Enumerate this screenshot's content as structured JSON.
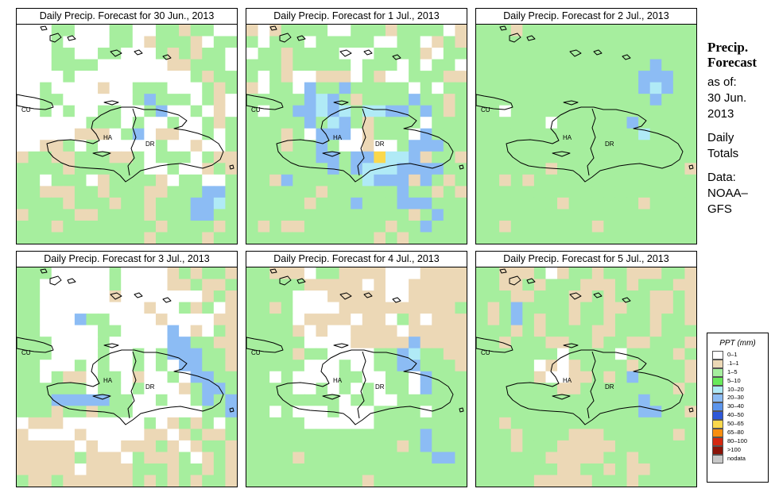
{
  "panels": [
    {
      "title": "Daily Precip. Forecast for  30 Jun., 2013",
      "grid": [
        "WWWGGWWWGGWWGGTGGWW",
        "WWWGWWWWGGWTGGGTWGG",
        "WWWGGWWGGWWWGTGTGGW",
        "WWWGGGGWWWWWWTTGGGW",
        "WWWWGWWWWWWWWWWGTGG",
        "WWGWWWWTWWGGGWWWGTG",
        "WWGGWWWWWWGLGGGWGTW",
        "WWGWGWWGGWWGLWWGWTW",
        "WWWWWWGGGWGWWGWWGTG",
        "WWWWWTTTWGLWTTWWGWG",
        "WWTTGWGWWWWWGWWTWWG",
        "TGGTTGGGTTGWGGGWGTT",
        "GGGGTGGGGGGWWGWWTGT",
        "GGWGGGWTGGGGTWGGWWG",
        "GGTTTGGTGGGTTGGGLLG",
        "GGGGTGGGTGGTGGGLLSG",
        "TGGGGTTGGGGTGGGLLGG",
        "GGGTGGGGGGGGTGGGGTG",
        "GGGGGGGGGGGTGGGGTGG"
      ]
    },
    {
      "title": "Daily Precip. Forecast for  1 Jul., 2013",
      "grid": [
        "TWTGGGGWWGGGTGGGGWT",
        "GWGGGWGGGGGWWGGWTGT",
        "WGGTGGGGWWWGGGGTWGG",
        "GGGTGGGGGWGGGWGWGGW",
        "GWGTWWTTTWGTWWGGGTT",
        "TWGGWLGGLGGGGGWGWGG",
        "GGGGGLSLGTGGGGLGGTG",
        "GWGGLLSLSGSSLLGLGTG",
        "GGGGGLGSLGTGGGGWGGG",
        "GGGTGWLLLWTGGGWLGGG",
        "GGGTGGLGWWTWWGLLLGG",
        "GGGGGGLLGLLYSSLTGGT",
        "GGGGGGGLGLSSSLLLLGG",
        "GGTLGGGGGGSLLLTLGTG",
        "GGGGGGTGGGGGGLGGTGT",
        "GGGGGTGGGLGGGLLLGGG",
        "GGGGGGGGGGGGGGTGLGG",
        "GTGTTGGGGGGGTGGLGGG",
        "GGGGGGGGGGGTGTGGGGG"
      ]
    },
    {
      "title": "Daily Precip. Forecast for  2 Jul., 2013",
      "grid": [
        "GGGTGGGGGGGGGGGGGGG",
        "GGGGGGGGGGGGGGGGGGG",
        "GGGGGGGGGGGGGGGGGGG",
        "GGGGGGGGGGGGGGGLGGG",
        "GGGGGGGGGGGGGGLLLGG",
        "GGGGGGGGGGGGGGLSLGG",
        "GGGGGGGGGGGGGGGLGGG",
        "GGWGGGGGGGGGGGGGGGG",
        "GGGGGGWGGGGGGLGGGGG",
        "GGGGGGGGGGGGGGSGGGG",
        "GGGGGGGGGGGGGGGGGGG",
        "GGGGGGGGGGGGGGGGGGG",
        "GGGGGGTGGGGGGGGGGGT",
        "GGTGTGGGGGGGGGGGGGG",
        "GGGGGGGGGGGGGGGGGGG",
        "GGGGGGGTGGGGGGTGGGG",
        "GGGGGGGGGGGGGGGGGGG",
        "GGTGGGGGGGTGGGGGGGG",
        "GGGGGGGGGGGGGGGGGGG"
      ]
    },
    {
      "title": "Daily Precip. Forecast for  3 Jul., 2013",
      "grid": [
        "GGGWWWWWGWWWWTGTGGT",
        "GGWWWWWWGWWWWTTGTTG",
        "GGWWWWWWTWWWWWWWTGT",
        "GGWWWWWWWWWTWWGTGWT",
        "GGWWWLGGWWWWTWWWWTT",
        "GGWWWWWGGWWWWLWTWGT",
        "GGGWWWWGWWWWWLLGGTT",
        "GGGWWWWGWWGWGLLLGGT",
        "GGWWWGWGWWGWGWLLGGT",
        "GGWGTTWGGWTWWGWLLGG",
        "GGGGGGWGGWGWWWTGLLG",
        "GGGLLLLLGGWWGWWGLGL",
        "GGGTGGTGGGWWWWWWGGL",
        "WTTTWWWWWWWGWTGTGWG",
        "TWWWWTWWWWWTTWTGTTG",
        "TTTTTWTWWTTTGTWTGGT",
        "TTTTTGTTTWGTTTGWTGT",
        "TTTTTWTTTTGGGTGGTGT",
        "GTTGTTTTTTGTGTGTGGT"
      ]
    },
    {
      "title": "Daily Precip. Forecast for  4 Jul., 2013",
      "grid": [
        "GGTTTWGGTTTTWWWTTTT",
        "GGGGGTTTTTWTWWTTTTT",
        "GGGGWWWTTTTTWWTTTTT",
        "GGTGWWWWTTTTTTTTTTG",
        "GGGGWTTTTWTTWGTWTTT",
        "GGGGTWTWWTTTTWTTTTT",
        "GGGGGWWWWTTTTTLTTTT",
        "GGGGTGGWWWWGGLSGGTT",
        "GGGGGWWWGWWGGLLGGGT",
        "GGWGWWWWGGWWGGWLGGG",
        "GGGGWWGWGWGWGGWLGGG",
        "GGGGGGGGWGGWWGGGGGG",
        "GGWGWWWGWWWGGGGWGGG",
        "GGGGGWWWWWWGGGGGGGG",
        "GGGGGGGGGGGGGGGLGGG",
        "GGGGGGGGGGGGGTGLGGG",
        "GGGGTGGGGGGGGGGGLLG",
        "GGGGGGGGGGGGGGGGGGG",
        "GGGGGGGGGGTGGGGGGGG"
      ]
    },
    {
      "title": "Daily Precip. Forecast for  5 Jul., 2013",
      "grid": [
        "GGTTTGWTGGTGGTTTGGT",
        "GGTTGTGGGTTTGTGGGTT",
        "GGGTTGGGTTGTGGGTTGT",
        "GTGLGGGGTGGTTGGTTGT",
        "GTGLGTGGTGGTGGGTGGT",
        "GGGTGTGGGGTTGGGTGGG",
        "GGTGGGTTGGTGGTTGGGT",
        "GGGGGGGWGGGGWGGGGTG",
        "GGGGGWTWTGGGGTGGGGT",
        "GGGGGTWWTTGTGLGGGGT",
        "GGGGGGGTTGGGGGGGGTG",
        "GGGGGGGGGGGGGGLGGGG",
        "GGGGGGGGGGGGGGLLGGT",
        "GGTGGGGGGGGGGGGGGGG",
        "GGGTGGGGTTTGGGGGGTG",
        "GGGTGGGTTTTTGGGGGGG",
        "GGGGGGTTTTTGGTGGGGG",
        "GGGGGGGTTGGTGTTGGGG",
        "GGGGGTTTTTGGGTGGGGG"
      ]
    }
  ],
  "map_labels": {
    "cuba": "CU",
    "haiti": "HA",
    "dominican_republic": "DR"
  },
  "sidebar": {
    "title_line1": "Precip.",
    "title_line2": "Forecast",
    "asof": "as of:",
    "date_line1": "30 Jun.",
    "date_line2": "2013",
    "totals_line1": "Daily",
    "totals_line2": "Totals",
    "data_line1": "Data:",
    "data_line2": "NOAA–",
    "data_line3": "GFS"
  },
  "legend": {
    "title": "PPT (mm)",
    "items": [
      {
        "label": "0–1",
        "color": "#ffffff"
      },
      {
        "label": ".1–1",
        "color": "#ecd8b6"
      },
      {
        "label": "1–5",
        "color": "#a6ee9e"
      },
      {
        "label": "5–10",
        "color": "#68ea5a"
      },
      {
        "label": "10–20",
        "color": "#b0eaf6"
      },
      {
        "label": "20–30",
        "color": "#8cbcf4"
      },
      {
        "label": "30–40",
        "color": "#5c95ec"
      },
      {
        "label": "40–50",
        "color": "#2e58d8"
      },
      {
        "label": "50–65",
        "color": "#fad84c"
      },
      {
        "label": "65–80",
        "color": "#f88e10"
      },
      {
        "label": "80–100",
        "color": "#d42810"
      },
      {
        "label": ">100",
        "color": "#8a1408"
      },
      {
        "label": "nodata",
        "color": "#c8c8c8"
      }
    ]
  }
}
